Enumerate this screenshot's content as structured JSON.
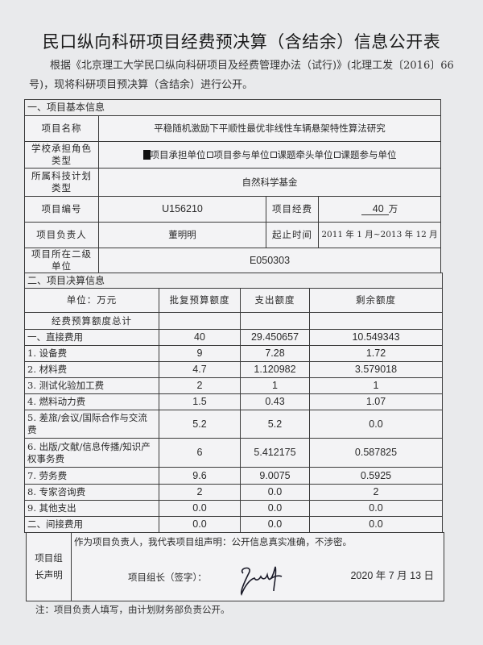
{
  "title": "民口纵向科研项目经费预决算（含结余）信息公开表",
  "intro": "根据《北京理工大学民口纵向科研项目及经费管理办法（试行)》(北理工发〔2016〕66号)，现将科研项目预决算（含结余）进行公开。",
  "section1": {
    "heading": "一、项目基本信息",
    "project_name_label": "项目名称",
    "project_name": "平稳随机激励下平顺性最优非线性车辆悬架特性算法研究",
    "role_label": "学校承担角色类型",
    "roles": [
      {
        "label": "项目承担单位",
        "checked": true
      },
      {
        "label": "项目参与单位",
        "checked": false
      },
      {
        "label": "课题牵头单位",
        "checked": false
      },
      {
        "label": "课题参与单位",
        "checked": false
      }
    ],
    "plan_label": "所属科技计划类型",
    "plan": "自然科学基金",
    "number_label": "项目编号",
    "number": "U156210",
    "funding_label": "项目经费",
    "funding_value": "40",
    "funding_unit": "万",
    "leader_label": "项目负责人",
    "leader": "董明明",
    "period_label": "起止时间",
    "period": "2011 年 1 月~2013 年 12 月",
    "dept_label": "项目所在二级单位",
    "dept": "E050303"
  },
  "section2": {
    "heading": "二、项目决算信息",
    "columns": [
      "单位：万元",
      "批复预算额度",
      "支出额度",
      "剩余额度"
    ],
    "rows": [
      {
        "item": "经费预算额度总计",
        "budget": "",
        "spent": "",
        "remaining": ""
      },
      {
        "item": "一、直接费用",
        "budget": "40",
        "spent": "29.450657",
        "remaining": "10.549343"
      },
      {
        "item": "1. 设备费",
        "budget": "9",
        "spent": "7.28",
        "remaining": "1.72"
      },
      {
        "item": "2. 材料费",
        "budget": "4.7",
        "spent": "1.120982",
        "remaining": "3.579018"
      },
      {
        "item": "3. 测试化验加工费",
        "budget": "2",
        "spent": "1",
        "remaining": "1"
      },
      {
        "item": "4. 燃料动力费",
        "budget": "1.5",
        "spent": "0.43",
        "remaining": "1.07"
      },
      {
        "item": "5. 差旅/会议/国际合作与交流费",
        "budget": "5.2",
        "spent": "5.2",
        "remaining": "0.0"
      },
      {
        "item": "6. 出版/文献/信息传播/知识产权事务费",
        "budget": "6",
        "spent": "5.412175",
        "remaining": "0.587825"
      },
      {
        "item": "7. 劳务费",
        "budget": "9.6",
        "spent": "9.0075",
        "remaining": "0.5925"
      },
      {
        "item": "8. 专家咨询费",
        "budget": "2",
        "spent": "0.0",
        "remaining": "2"
      },
      {
        "item": "9. 其他支出",
        "budget": "0.0",
        "spent": "0.0",
        "remaining": "0.0"
      },
      {
        "item": "二、间接费用",
        "budget": "0.0",
        "spent": "0.0",
        "remaining": "0.0"
      }
    ]
  },
  "declaration": {
    "label": "项目组长声明",
    "statement": "作为项目负责人，我代表项目组声明：公开信息真实准确，不涉密。",
    "sign_label": "项目组长（签字）：",
    "signature": "handwritten signature",
    "date": "2020 年 7 月 13 日"
  },
  "note": "注：项目负责人填写，由计划财务部负责公开。"
}
